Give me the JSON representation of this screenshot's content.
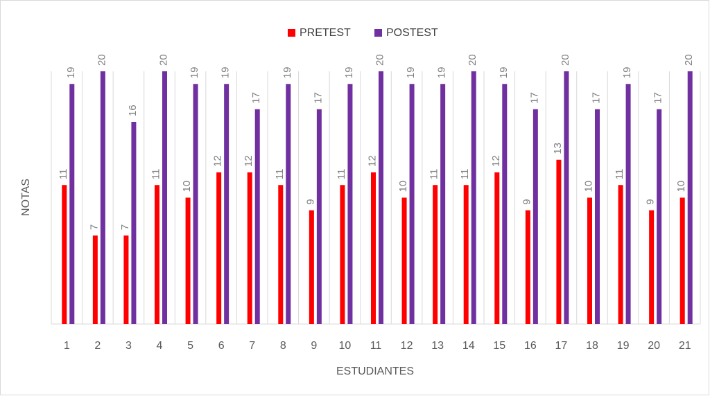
{
  "chart_data": {
    "type": "bar",
    "x_label": "ESTUDIANTES",
    "y_label": "NOTAS",
    "categories": [
      "1",
      "2",
      "3",
      "4",
      "5",
      "6",
      "7",
      "8",
      "9",
      "10",
      "11",
      "12",
      "13",
      "14",
      "15",
      "16",
      "17",
      "18",
      "19",
      "20",
      "21"
    ],
    "series": [
      {
        "name": "PRETEST",
        "color": "#ff0000",
        "values": [
          11,
          7,
          7,
          11,
          10,
          12,
          12,
          11,
          9,
          11,
          12,
          10,
          11,
          11,
          12,
          9,
          13,
          10,
          11,
          9,
          10
        ]
      },
      {
        "name": "POSTEST",
        "color": "#7030a0",
        "values": [
          19,
          20,
          16,
          20,
          19,
          19,
          17,
          19,
          17,
          19,
          20,
          19,
          19,
          20,
          19,
          17,
          20,
          17,
          19,
          17,
          20
        ]
      }
    ],
    "ylim": [
      0,
      20
    ],
    "grid": true,
    "legend": "top",
    "data_labels": true
  }
}
